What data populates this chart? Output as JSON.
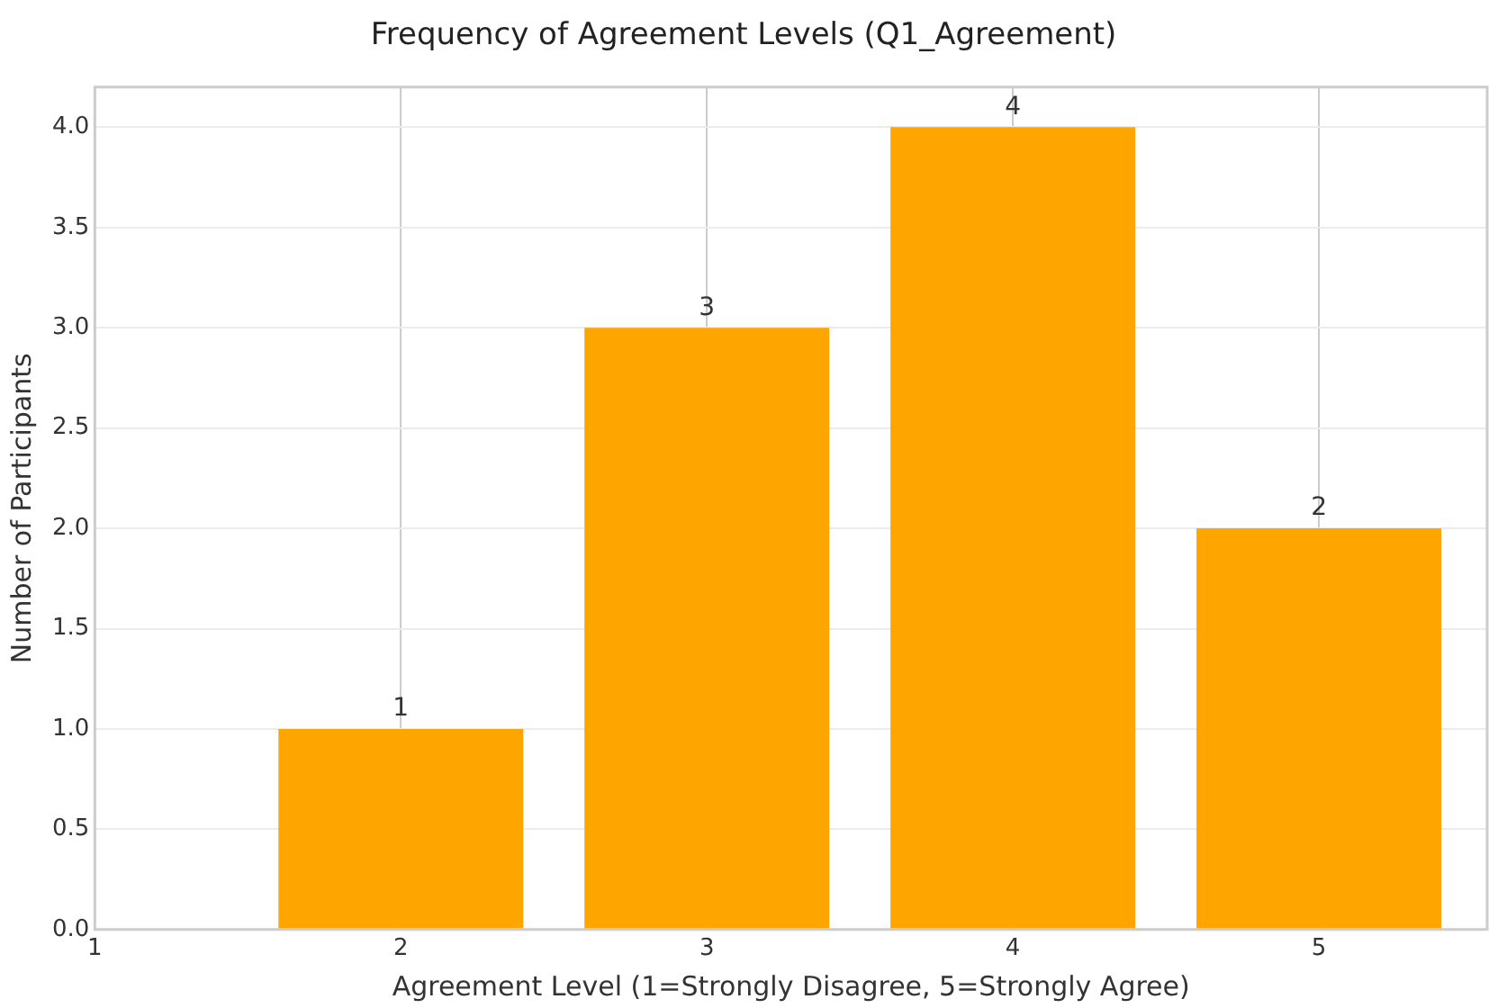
{
  "chart_data": {
    "type": "bar",
    "title": "Frequency of Agreement Levels (Q1_Agreement)",
    "xlabel": "Agreement Level (1=Strongly Disagree, 5=Strongly Agree)",
    "ylabel": "Number of Participants",
    "x": [
      2,
      3,
      4,
      5
    ],
    "values": [
      1,
      3,
      4,
      2
    ],
    "color": "#ffa500",
    "data_labels": true,
    "xlim": [
      1,
      5.55
    ],
    "xticks": [
      1,
      2,
      3,
      4,
      5
    ],
    "ylim": [
      0,
      4.2
    ],
    "yticks": [
      {
        "value": 0,
        "label": "0.0"
      },
      {
        "value": 0.5,
        "label": "0.5"
      },
      {
        "value": 1,
        "label": "1.0"
      },
      {
        "value": 1.5,
        "label": "1.5"
      },
      {
        "value": 2,
        "label": "2.0"
      },
      {
        "value": 2.5,
        "label": "2.5"
      },
      {
        "value": 3,
        "label": "3.0"
      },
      {
        "value": 3.5,
        "label": "3.5"
      },
      {
        "value": 4,
        "label": "4.0"
      }
    ],
    "grid": true
  }
}
